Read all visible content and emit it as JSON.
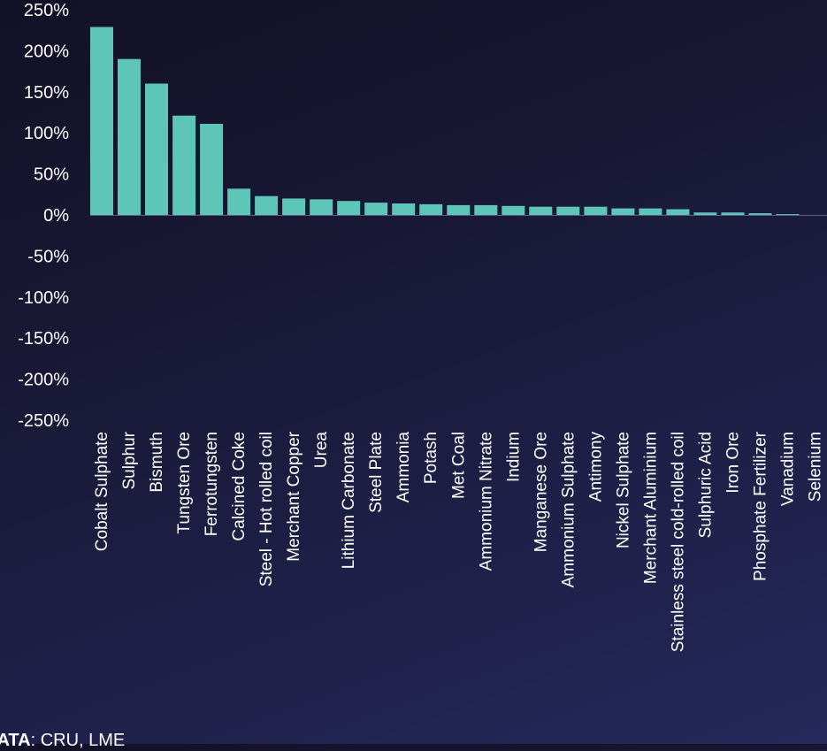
{
  "chart_data": {
    "type": "bar",
    "categories": [
      "Cobalt Sulphate",
      "Sulphur",
      "Bismuth",
      "Tungsten Ore",
      "Ferrotungsten",
      "Calcined Coke",
      "Steel - Hot rolled coil",
      "Merchant Copper",
      "Urea",
      "Lithium Carbonate",
      "Steel Plate",
      "Ammonia",
      "Potash",
      "Met Coal",
      "Ammonium Nitrate",
      "Indium",
      "Manganese Ore",
      "Ammonium Sulphate",
      "Antimony",
      "Nickel Sulphate",
      "Merchant Aluminium",
      "Stainless steel cold-rolled coil",
      "Sulphuric Acid",
      "Iron Ore",
      "Phosphate Fertilizer",
      "Vanadium",
      "Selenium"
    ],
    "values": [
      229,
      190,
      160,
      121,
      111,
      32,
      23,
      20,
      19,
      17,
      15,
      14,
      13,
      12,
      12,
      11,
      10,
      10,
      10,
      8,
      8,
      7,
      3,
      3,
      2,
      1,
      0
    ],
    "ylim": [
      -250,
      250
    ],
    "yticks": [
      -250,
      -200,
      -150,
      -100,
      -50,
      0,
      50,
      100,
      150,
      200,
      250
    ],
    "ytick_suffix": "%",
    "bar_color": "#5ec5b9",
    "grid": false,
    "title": "",
    "xlabel": "",
    "ylabel": ""
  },
  "source": {
    "label": "DATA",
    "text": ": CRU, LME"
  }
}
